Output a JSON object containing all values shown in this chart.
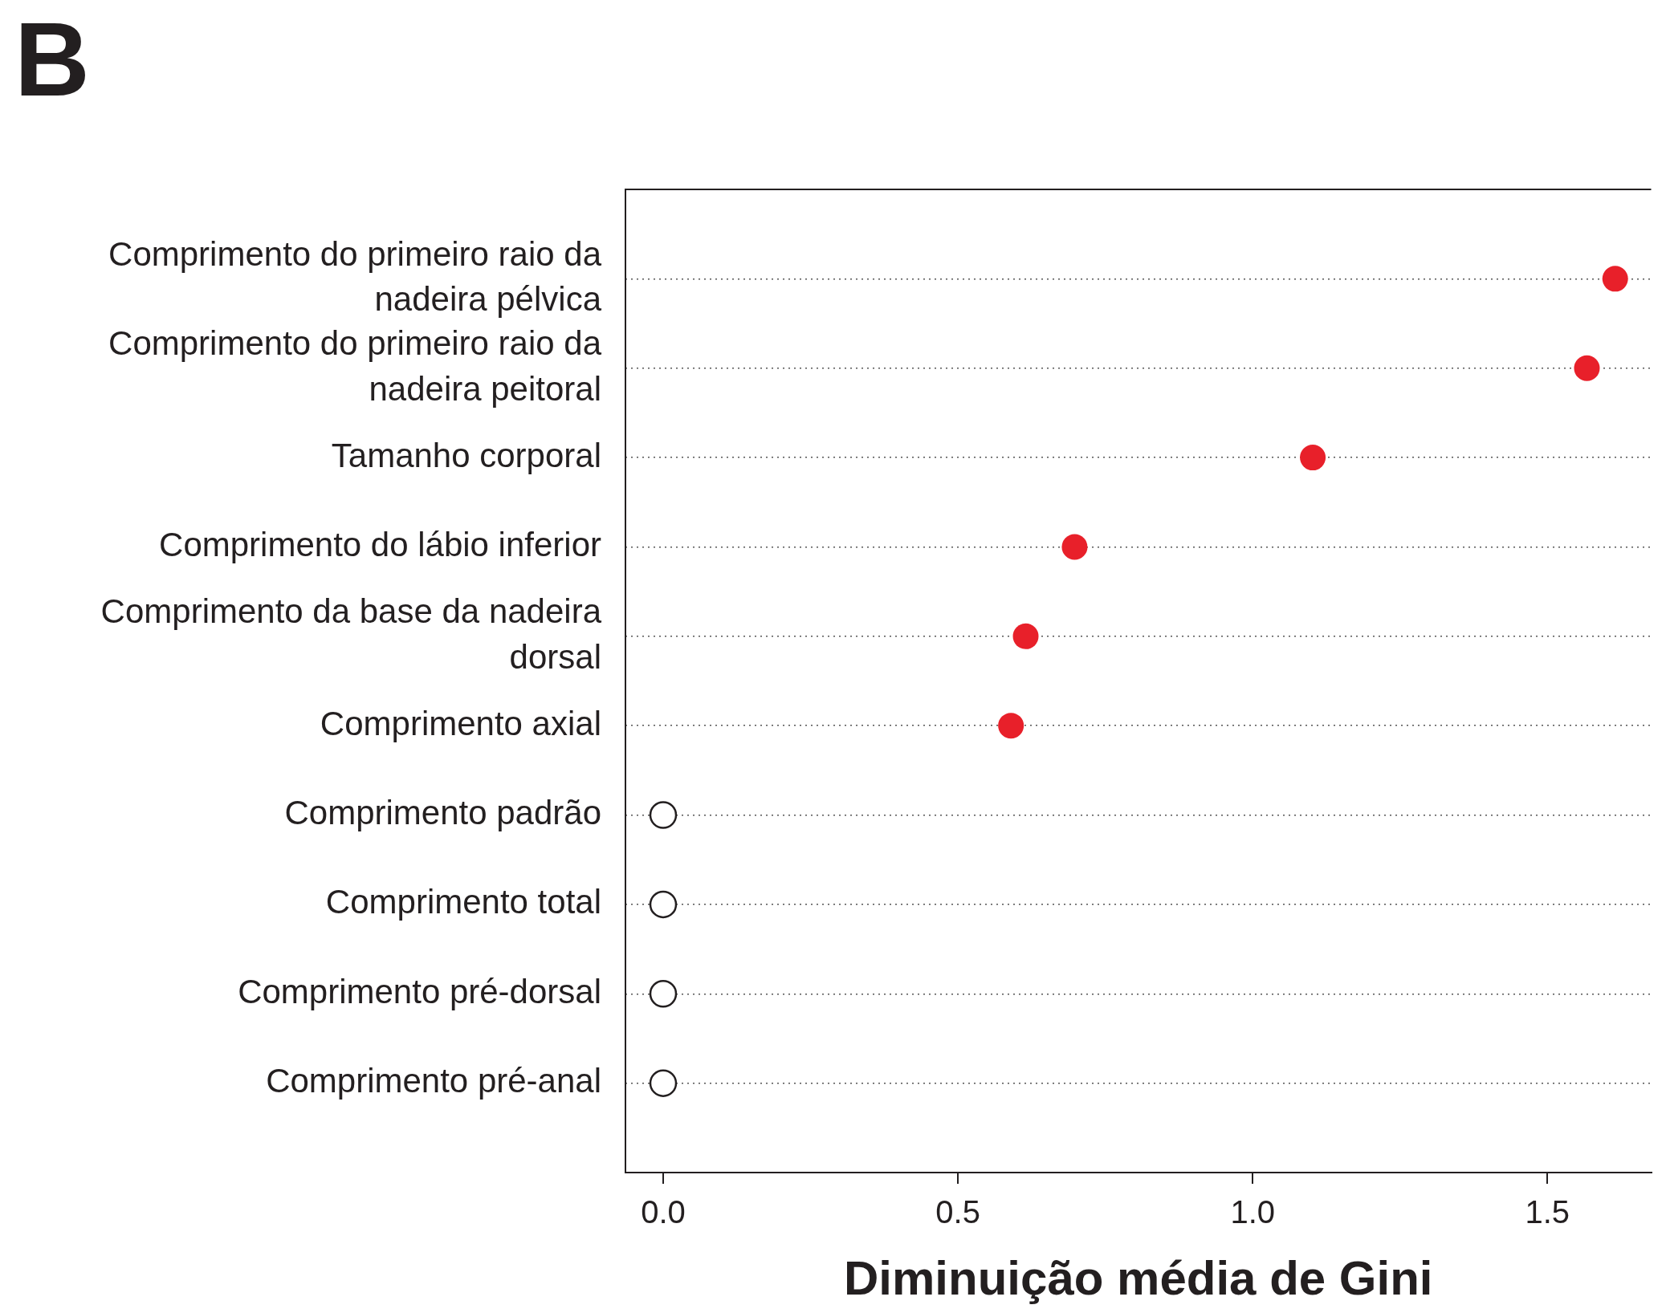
{
  "chart_data": {
    "type": "scatter",
    "xlabel": "Diminuição média de Gini",
    "annotations": [
      "B"
    ],
    "categories": [
      "Comprimento do primeiro raio da nadeira pélvica",
      "Comprimento do primeiro raio da nadeira peitoral",
      "Tamanho corporal",
      "Comprimento do lábio inferior",
      "Comprimento da base da nadeira dorsal",
      "Comprimento axial",
      "Comprimento padrão",
      "Comprimento total",
      "Comprimento pré-dorsal",
      "Comprimento pré-anal"
    ],
    "series": [
      {
        "color": "#e8202a",
        "values": [
          1.615,
          1.567,
          1.102,
          0.698,
          0.615,
          0.59,
          null,
          null,
          null,
          null
        ]
      },
      {
        "color": "#231f20",
        "values": [
          null,
          null,
          null,
          null,
          null,
          null,
          0,
          0,
          0,
          0
        ]
      }
    ],
    "xlim": [
      -0.064,
      1.676
    ],
    "xticks": [
      {
        "value": 0,
        "label": "0.0"
      },
      {
        "value": 0.5,
        "label": "0.5"
      },
      {
        "value": 1,
        "label": "1.0"
      },
      {
        "value": 1.5,
        "label": "1.5"
      }
    ],
    "orientation": "horizontal",
    "grid": "y",
    "line_style": "dotted",
    "marker": "circle",
    "legend": false
  }
}
